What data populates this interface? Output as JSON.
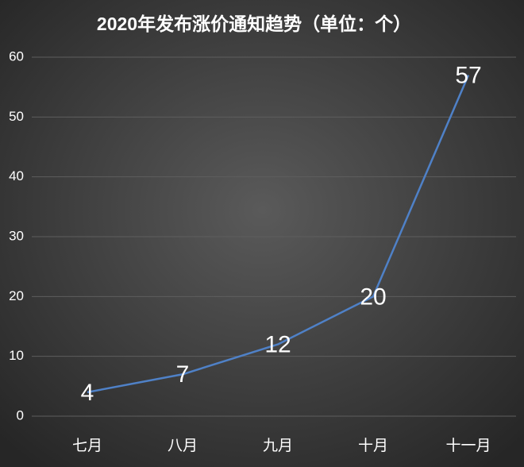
{
  "chart_data": {
    "type": "line",
    "title": "2020年发布涨价通知趋势（单位：个）",
    "categories": [
      "七月",
      "八月",
      "九月",
      "十月",
      "十一月"
    ],
    "values": [
      4,
      7,
      12,
      20,
      57
    ],
    "color": "#4f81c7",
    "ylim": [
      0,
      60
    ],
    "yticks": [
      0,
      10,
      20,
      30,
      40,
      50,
      60
    ],
    "grid": true
  }
}
